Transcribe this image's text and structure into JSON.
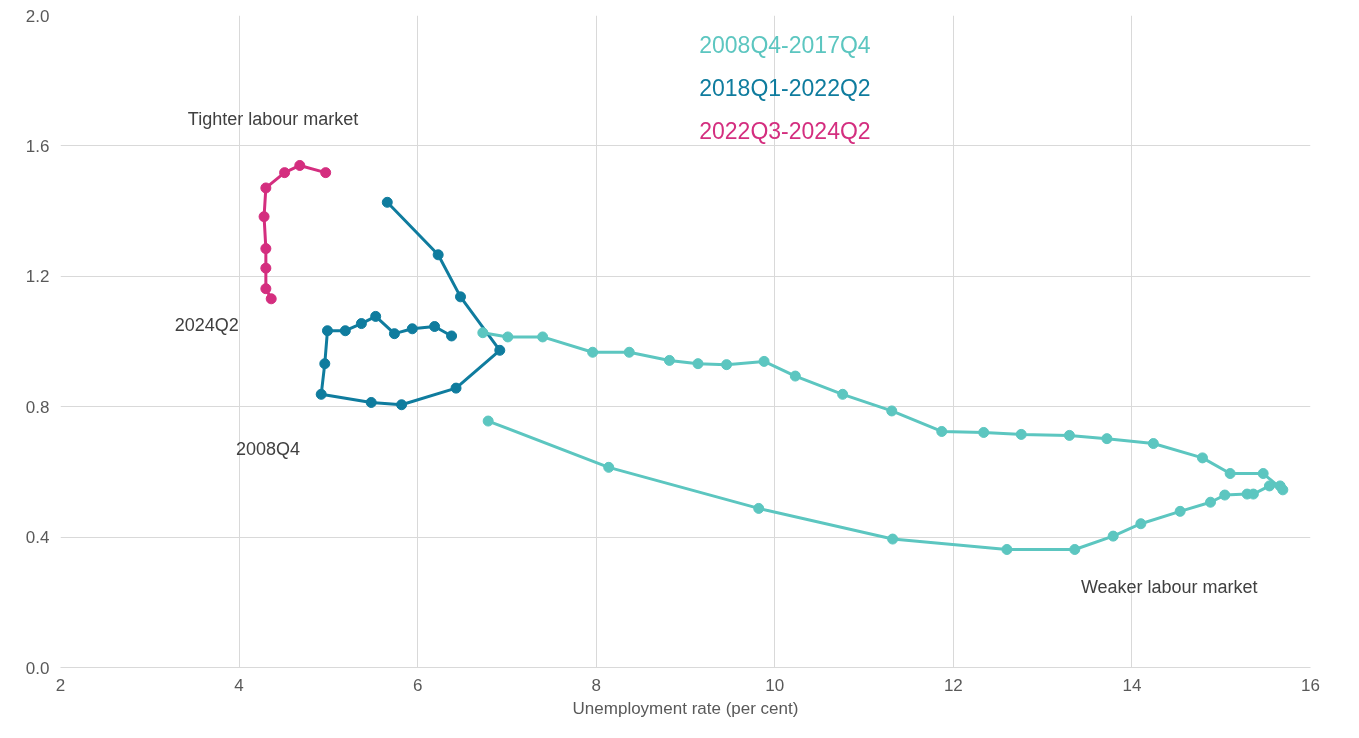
{
  "chart_data": {
    "type": "line",
    "xlabel": "Unemployment rate (per cent)",
    "xlim": [
      2,
      16
    ],
    "xticks": [
      2,
      4,
      6,
      8,
      10,
      12,
      14,
      16
    ],
    "ylim": [
      0,
      2
    ],
    "yticks": [
      {
        "value": 0,
        "label": "0.0"
      },
      0.4,
      0.8,
      1.2,
      1.6,
      {
        "value": 2,
        "label": "2.0"
      }
    ],
    "grid": true,
    "legend": "top",
    "marker": "circle",
    "line_style": "solid",
    "series": [
      {
        "name": "2008Q4-2017Q4",
        "color": "#5cc6c0",
        "x": [
          6.79,
          8.14,
          9.82,
          11.32,
          12.6,
          13.36,
          13.79,
          14.1,
          14.54,
          14.88,
          15.04,
          15.29,
          15.36,
          15.54,
          15.66,
          15.69,
          15.47,
          15.1,
          14.79,
          14.24,
          13.72,
          13.3,
          12.76,
          12.34,
          11.87,
          11.31,
          10.76,
          10.23,
          9.88,
          9.46,
          9.14,
          8.82,
          8.37,
          7.96,
          7.4,
          7.01,
          6.73
        ],
        "values": [
          0.756,
          0.614,
          0.488,
          0.394,
          0.362,
          0.362,
          0.403,
          0.441,
          0.479,
          0.507,
          0.529,
          0.532,
          0.532,
          0.557,
          0.557,
          0.545,
          0.595,
          0.595,
          0.643,
          0.687,
          0.702,
          0.712,
          0.715,
          0.721,
          0.724,
          0.787,
          0.838,
          0.894,
          0.939,
          0.929,
          0.932,
          0.942,
          0.967,
          0.967,
          1.014,
          1.014,
          1.027
        ]
      },
      {
        "name": "2018Q1-2022Q2",
        "color": "#0f7c9e",
        "x": [
          6.38,
          6.19,
          5.94,
          5.74,
          5.53,
          5.37,
          5.19,
          4.99,
          4.96,
          4.92,
          5.48,
          5.82,
          6.43,
          6.92,
          6.48,
          6.23,
          5.66
        ],
        "values": [
          1.017,
          1.046,
          1.039,
          1.024,
          1.077,
          1.055,
          1.033,
          1.033,
          0.932,
          0.838,
          0.813,
          0.806,
          0.857,
          0.973,
          1.137,
          1.266,
          1.427
        ]
      },
      {
        "name": "2022Q3-2024Q2",
        "color": "#d42e7f",
        "x": [
          4.97,
          4.68,
          4.51,
          4.3,
          4.28,
          4.3,
          4.3,
          4.3,
          4.36
        ],
        "values": [
          1.518,
          1.54,
          1.518,
          1.471,
          1.383,
          1.285,
          1.225,
          1.162,
          1.131
        ]
      }
    ],
    "annotations": [
      "Tighter labour market",
      "2024Q2",
      "2008Q4",
      "Weaker labour market"
    ]
  }
}
